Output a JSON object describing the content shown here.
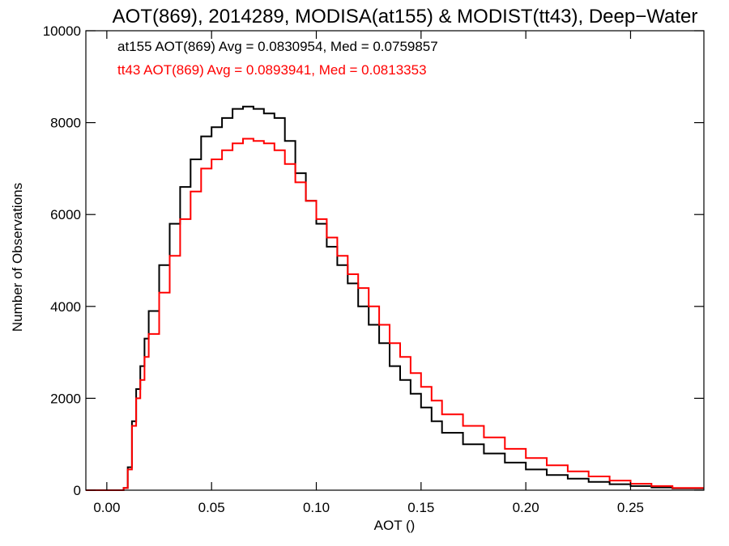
{
  "chart_data": {
    "type": "line",
    "title": "AOT(869), 2014289, MODISA(at155) & MODIST(tt43), Deep−Water",
    "xlabel": "AOT ()",
    "ylabel": "Number of Observations",
    "xlim": [
      -0.01,
      0.285
    ],
    "ylim": [
      0,
      10000
    ],
    "x_ticks": [
      0.0,
      0.05,
      0.1,
      0.15,
      0.2,
      0.25
    ],
    "x_tick_labels": [
      "0.00",
      "0.05",
      "0.10",
      "0.15",
      "0.20",
      "0.25"
    ],
    "y_ticks": [
      0,
      2000,
      4000,
      6000,
      8000,
      10000
    ],
    "y_tick_labels": [
      "0",
      "2000",
      "4000",
      "6000",
      "8000",
      "10000"
    ],
    "grid": false,
    "step": true,
    "annotations": [
      {
        "text": "at155 AOT(869) Avg = 0.0830954, Med = 0.0759857",
        "color": "#000000"
      },
      {
        "text": "tt43 AOT(869) Avg = 0.0893941, Med = 0.0813353",
        "color": "#ff0000"
      }
    ],
    "series": [
      {
        "color": "#000000",
        "x": [
          -0.01,
          0.0,
          0.005,
          0.008,
          0.01,
          0.012,
          0.014,
          0.016,
          0.018,
          0.02,
          0.025,
          0.03,
          0.035,
          0.04,
          0.045,
          0.05,
          0.055,
          0.06,
          0.065,
          0.07,
          0.075,
          0.08,
          0.085,
          0.09,
          0.095,
          0.1,
          0.105,
          0.11,
          0.115,
          0.12,
          0.125,
          0.13,
          0.135,
          0.14,
          0.145,
          0.15,
          0.155,
          0.16,
          0.17,
          0.18,
          0.19,
          0.2,
          0.21,
          0.22,
          0.23,
          0.24,
          0.25,
          0.26,
          0.27,
          0.285
        ],
        "y": [
          0,
          0,
          0,
          50,
          500,
          1500,
          2200,
          2700,
          3300,
          3900,
          4900,
          5800,
          6600,
          7200,
          7700,
          7900,
          8100,
          8300,
          8350,
          8300,
          8200,
          8100,
          7600,
          6900,
          6300,
          5800,
          5300,
          4900,
          4500,
          4000,
          3600,
          3200,
          2700,
          2400,
          2100,
          1800,
          1500,
          1250,
          1000,
          800,
          600,
          450,
          330,
          250,
          180,
          130,
          90,
          60,
          40,
          20
        ]
      },
      {
        "color": "#ff0000",
        "x": [
          -0.01,
          0.0,
          0.005,
          0.008,
          0.01,
          0.012,
          0.014,
          0.016,
          0.018,
          0.02,
          0.025,
          0.03,
          0.035,
          0.04,
          0.045,
          0.05,
          0.055,
          0.06,
          0.065,
          0.07,
          0.075,
          0.08,
          0.085,
          0.09,
          0.095,
          0.1,
          0.105,
          0.11,
          0.115,
          0.12,
          0.125,
          0.13,
          0.135,
          0.14,
          0.145,
          0.15,
          0.155,
          0.16,
          0.17,
          0.18,
          0.19,
          0.2,
          0.21,
          0.22,
          0.23,
          0.24,
          0.25,
          0.26,
          0.27,
          0.285
        ],
        "y": [
          0,
          0,
          0,
          50,
          450,
          1400,
          2000,
          2400,
          2900,
          3400,
          4300,
          5100,
          5900,
          6500,
          7000,
          7200,
          7400,
          7550,
          7650,
          7600,
          7550,
          7400,
          7100,
          6700,
          6300,
          5900,
          5500,
          5100,
          4700,
          4400,
          4000,
          3600,
          3200,
          2900,
          2550,
          2250,
          1950,
          1650,
          1400,
          1150,
          900,
          700,
          540,
          410,
          300,
          210,
          140,
          90,
          50,
          20
        ]
      }
    ]
  }
}
